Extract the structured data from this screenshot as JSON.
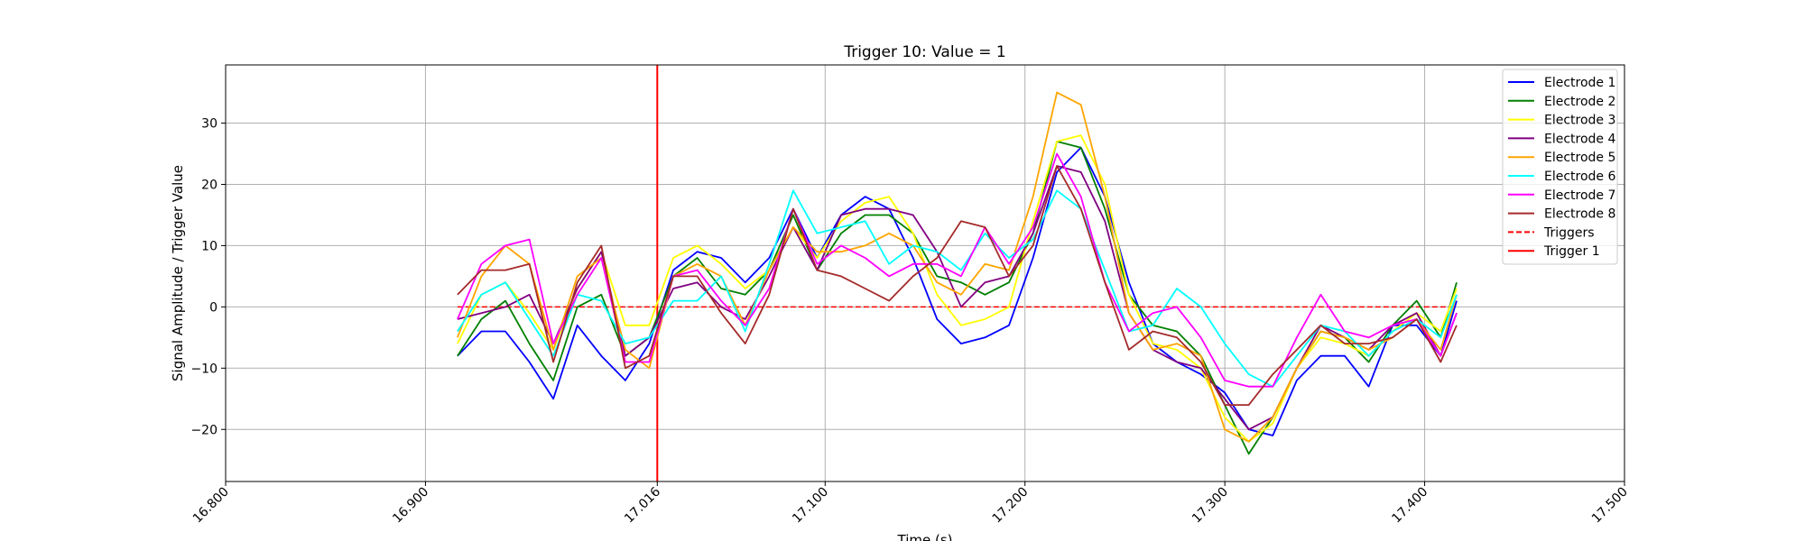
{
  "chart_data": {
    "type": "line",
    "title": "Trigger 10: Value = 1",
    "xlabel": "Time (s)",
    "ylabel": "Signal Amplitude / Trigger Value",
    "xlim": [
      16.8,
      17.5
    ],
    "ylim": [
      -28.5,
      39.5
    ],
    "grid": true,
    "legend_position": "top-right",
    "x_ticks": [
      16.8,
      16.9,
      17.016,
      17.1,
      17.2,
      17.3,
      17.4,
      17.5
    ],
    "x_tick_labels": [
      "16.800",
      "16.900",
      "17.016",
      "17.100",
      "17.200",
      "17.300",
      "17.400",
      "17.500"
    ],
    "y_ticks": [
      -20,
      -10,
      0,
      10,
      20,
      30
    ],
    "y_tick_labels": [
      "−20",
      "−10",
      "0",
      "10",
      "20",
      "30"
    ],
    "x": [
      16.916,
      16.928,
      16.94,
      16.952,
      16.964,
      16.976,
      16.988,
      17.0,
      17.012,
      17.024,
      17.036,
      17.048,
      17.06,
      17.072,
      17.084,
      17.096,
      17.108,
      17.12,
      17.132,
      17.144,
      17.156,
      17.168,
      17.18,
      17.192,
      17.204,
      17.216,
      17.228,
      17.24,
      17.252,
      17.264,
      17.276,
      17.288,
      17.3,
      17.312,
      17.324,
      17.336,
      17.348,
      17.36,
      17.372,
      17.384,
      17.396,
      17.408,
      17.416
    ],
    "series": [
      {
        "name": "Electrode 1",
        "color": "#0000ff",
        "values": [
          -8,
          -4,
          -4,
          -9,
          -15,
          -3,
          -8,
          -12,
          -6,
          6,
          9,
          8,
          4,
          8,
          16,
          8,
          15,
          18,
          16,
          8,
          -2,
          -6,
          -5,
          -3,
          8,
          22,
          26,
          18,
          4,
          -6,
          -9,
          -11,
          -14,
          -20,
          -21,
          -12,
          -8,
          -8,
          -13,
          -3,
          -3,
          -8,
          1
        ]
      },
      {
        "name": "Electrode 2",
        "color": "#008000",
        "values": [
          -8,
          -2,
          1,
          -6,
          -12,
          0,
          2,
          -8,
          -5,
          5,
          8,
          3,
          2,
          6,
          15,
          6,
          12,
          15,
          15,
          12,
          5,
          4,
          2,
          4,
          12,
          27,
          26,
          16,
          2,
          -3,
          -4,
          -8,
          -16,
          -24,
          -18,
          -10,
          -4,
          -5,
          -9,
          -3,
          1,
          -5,
          4
        ]
      },
      {
        "name": "Electrode 3",
        "color": "#ffff00",
        "values": [
          -6,
          2,
          4,
          -1,
          -7,
          3,
          9,
          -3,
          -3,
          8,
          10,
          7,
          3,
          6,
          13,
          8,
          14,
          17,
          18,
          12,
          2,
          -3,
          -2,
          0,
          14,
          27,
          28,
          20,
          2,
          -6,
          -7,
          -10,
          -18,
          -22,
          -19,
          -10,
          -5,
          -6,
          -8,
          -4,
          -1,
          -4,
          3
        ]
      },
      {
        "name": "Electrode 4",
        "color": "#800080",
        "values": [
          -2,
          -1,
          0,
          2,
          -6,
          3,
          9,
          -8,
          -5,
          3,
          4,
          0,
          -2,
          5,
          13,
          6,
          15,
          16,
          16,
          15,
          9,
          0,
          4,
          5,
          12,
          23,
          22,
          14,
          -1,
          -7,
          -9,
          -10,
          -15,
          -20,
          -18,
          -10,
          -3,
          -5,
          -7,
          -3,
          -1,
          -8,
          -1
        ]
      },
      {
        "name": "Electrode 5",
        "color": "#ffa500",
        "values": [
          -5,
          5,
          10,
          7,
          -7,
          5,
          8,
          -7,
          -10,
          5,
          7,
          5,
          -3,
          6,
          13,
          9,
          9,
          10,
          12,
          10,
          4,
          2,
          7,
          6,
          18,
          35,
          33,
          18,
          -1,
          -7,
          -6,
          -8,
          -20,
          -22,
          -18,
          -10,
          -4,
          -5,
          -7,
          -5,
          -2,
          -7,
          2
        ]
      },
      {
        "name": "Electrode 6",
        "color": "#00ffff",
        "values": [
          -4,
          2,
          4,
          -2,
          -8,
          2,
          1,
          -6,
          -5,
          1,
          1,
          5,
          -4,
          7,
          19,
          12,
          13,
          14,
          7,
          10,
          9,
          6,
          12,
          8,
          11,
          19,
          16,
          6,
          -4,
          -3,
          3,
          0,
          -6,
          -11,
          -13,
          -8,
          -3,
          -4,
          -8,
          -4,
          -2,
          -5,
          2
        ]
      },
      {
        "name": "Electrode 7",
        "color": "#ff00ff",
        "values": [
          -2,
          7,
          10,
          11,
          -6,
          2,
          8,
          -9,
          -9,
          5,
          6,
          1,
          -3,
          3,
          16,
          7,
          10,
          8,
          5,
          7,
          7,
          5,
          13,
          7,
          13,
          25,
          18,
          4,
          -4,
          -1,
          0,
          -5,
          -12,
          -13,
          -13,
          -5,
          2,
          -4,
          -5,
          -3,
          -2,
          -8,
          -1
        ]
      },
      {
        "name": "Electrode 8",
        "color": "#a52a2a",
        "values": [
          2,
          6,
          6,
          7,
          -9,
          4,
          10,
          -10,
          -8,
          5,
          5,
          -1,
          -6,
          2,
          16,
          6,
          5,
          3,
          1,
          5,
          8,
          14,
          13,
          5,
          10,
          23,
          16,
          4,
          -7,
          -4,
          -5,
          -9,
          -16,
          -16,
          -11,
          -7,
          -3,
          -6,
          -6,
          -5,
          -2,
          -9,
          -3
        ]
      }
    ],
    "reference_lines": [
      {
        "name": "Triggers",
        "color": "#ff0000",
        "style": "dashed",
        "orientation": "horizontal",
        "value": 0,
        "x_range": [
          16.916,
          17.416
        ]
      },
      {
        "name": "Trigger 1",
        "color": "#ff0000",
        "style": "solid",
        "orientation": "vertical",
        "value": 17.016
      }
    ]
  }
}
